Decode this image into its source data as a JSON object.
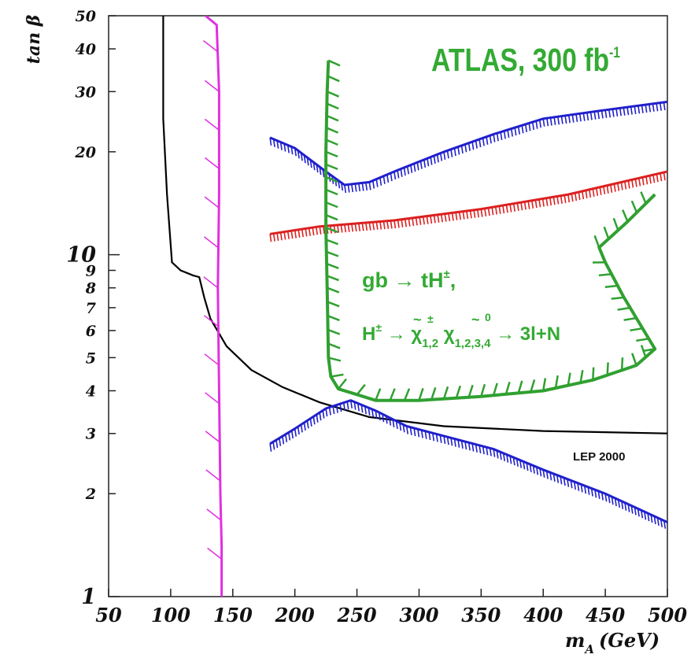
{
  "chart_data": {
    "type": "line",
    "title": "ATLAS, 300 fb",
    "title_superscript": "-1",
    "xlabel": "m",
    "xlabel_subscript": "A",
    "xlabel_unit": "(GeV)",
    "ylabel": "tan β",
    "xlim": [
      50,
      500
    ],
    "ylim": [
      1,
      50
    ],
    "y_scale": "log",
    "grid": false,
    "x_ticks": [
      {
        "value": 50,
        "label": "50"
      },
      {
        "value": 100,
        "label": "100"
      },
      {
        "value": 150,
        "label": "150"
      },
      {
        "value": 200,
        "label": "200"
      },
      {
        "value": 250,
        "label": "250"
      },
      {
        "value": 300,
        "label": "300"
      },
      {
        "value": 350,
        "label": "350"
      },
      {
        "value": 400,
        "label": "400"
      },
      {
        "value": 450,
        "label": "450"
      },
      {
        "value": 500,
        "label": "500"
      }
    ],
    "y_ticks": [
      {
        "value": 1,
        "label": "1"
      },
      {
        "value": 2,
        "label": "2"
      },
      {
        "value": 3,
        "label": "3"
      },
      {
        "value": 4,
        "label": "4"
      },
      {
        "value": 5,
        "label": "5"
      },
      {
        "value": 6,
        "label": "6"
      },
      {
        "value": 7,
        "label": "7"
      },
      {
        "value": 8,
        "label": "8"
      },
      {
        "value": 9,
        "label": "9"
      },
      {
        "value": 10,
        "label": "10"
      },
      {
        "value": 20,
        "label": "20"
      },
      {
        "value": 30,
        "label": "30"
      },
      {
        "value": 40,
        "label": "40"
      },
      {
        "value": 50,
        "label": "50"
      }
    ],
    "annotations": {
      "process_line1": "gb → tH",
      "process_line1_sup": "±",
      "process_line1_end": ",",
      "process_line2_a": "H",
      "process_line2_a_sup": "±",
      "process_line2_b": " → ",
      "chi": "χ",
      "chi1_sup": "±",
      "chi1_sub": "1,2",
      "chi2_sup": "0",
      "chi2_sub": "1,2,3,4",
      "process_line2_end": " → 3l+N",
      "lep_label": "LEP 2000"
    },
    "series": [
      {
        "id": "lep2000",
        "color": "#000000",
        "style": "solid",
        "points": [
          [
            94,
            50
          ],
          [
            94,
            25
          ],
          [
            97,
            15
          ],
          [
            101,
            9.5
          ],
          [
            108,
            9.0
          ],
          [
            118,
            8.7
          ],
          [
            123,
            8.6
          ],
          [
            127,
            7.5
          ],
          [
            132,
            6.5
          ],
          [
            145,
            5.4
          ],
          [
            165,
            4.6
          ],
          [
            190,
            4.1
          ],
          [
            220,
            3.7
          ],
          [
            260,
            3.35
          ],
          [
            320,
            3.15
          ],
          [
            400,
            3.05
          ],
          [
            500,
            3.0
          ]
        ]
      },
      {
        "id": "magenta-limit",
        "color": "#e030e0",
        "style": "hatched",
        "hatch_side": "left",
        "points": [
          [
            128,
            50
          ],
          [
            137,
            47
          ],
          [
            139,
            30
          ],
          [
            139,
            15
          ],
          [
            138,
            8
          ],
          [
            139,
            4
          ],
          [
            140,
            2
          ],
          [
            141,
            1.4
          ],
          [
            141,
            1.0
          ]
        ]
      },
      {
        "id": "blue-upper",
        "color": "#2020cc",
        "style": "hatched-band",
        "points": [
          [
            180,
            22
          ],
          [
            200,
            20.5
          ],
          [
            225,
            17.5
          ],
          [
            240,
            16
          ],
          [
            260,
            16.3
          ],
          [
            280,
            17.5
          ],
          [
            320,
            20
          ],
          [
            360,
            22.5
          ],
          [
            400,
            25
          ],
          [
            450,
            26.5
          ],
          [
            500,
            28
          ]
        ]
      },
      {
        "id": "red-band",
        "color": "#dd2020",
        "style": "hatched-band",
        "points": [
          [
            180,
            11.5
          ],
          [
            220,
            12.1
          ],
          [
            280,
            12.6
          ],
          [
            350,
            13.6
          ],
          [
            420,
            15.0
          ],
          [
            500,
            17.5
          ]
        ]
      },
      {
        "id": "blue-lower",
        "color": "#2020cc",
        "style": "hatched-band",
        "points": [
          [
            180,
            2.8
          ],
          [
            200,
            3.1
          ],
          [
            225,
            3.55
          ],
          [
            245,
            3.75
          ],
          [
            265,
            3.5
          ],
          [
            290,
            3.15
          ],
          [
            320,
            2.95
          ],
          [
            360,
            2.7
          ],
          [
            400,
            2.35
          ],
          [
            450,
            2.0
          ],
          [
            500,
            1.65
          ]
        ]
      },
      {
        "id": "green-contour",
        "color": "#30a030",
        "style": "hatched-contour",
        "points": [
          [
            227,
            37
          ],
          [
            226,
            30
          ],
          [
            225,
            20
          ],
          [
            225,
            12
          ],
          [
            226,
            8
          ],
          [
            227,
            5
          ],
          [
            229,
            4.4
          ],
          [
            235,
            4.05
          ],
          [
            250,
            3.9
          ],
          [
            265,
            3.75
          ],
          [
            300,
            3.75
          ],
          [
            350,
            3.85
          ],
          [
            400,
            4.0
          ],
          [
            440,
            4.3
          ],
          [
            475,
            4.75
          ],
          [
            490,
            5.3
          ],
          [
            465,
            7.5
          ],
          [
            450,
            9.5
          ],
          [
            445,
            10.5
          ],
          [
            468,
            12.5
          ],
          [
            490,
            15.0
          ]
        ]
      }
    ]
  }
}
